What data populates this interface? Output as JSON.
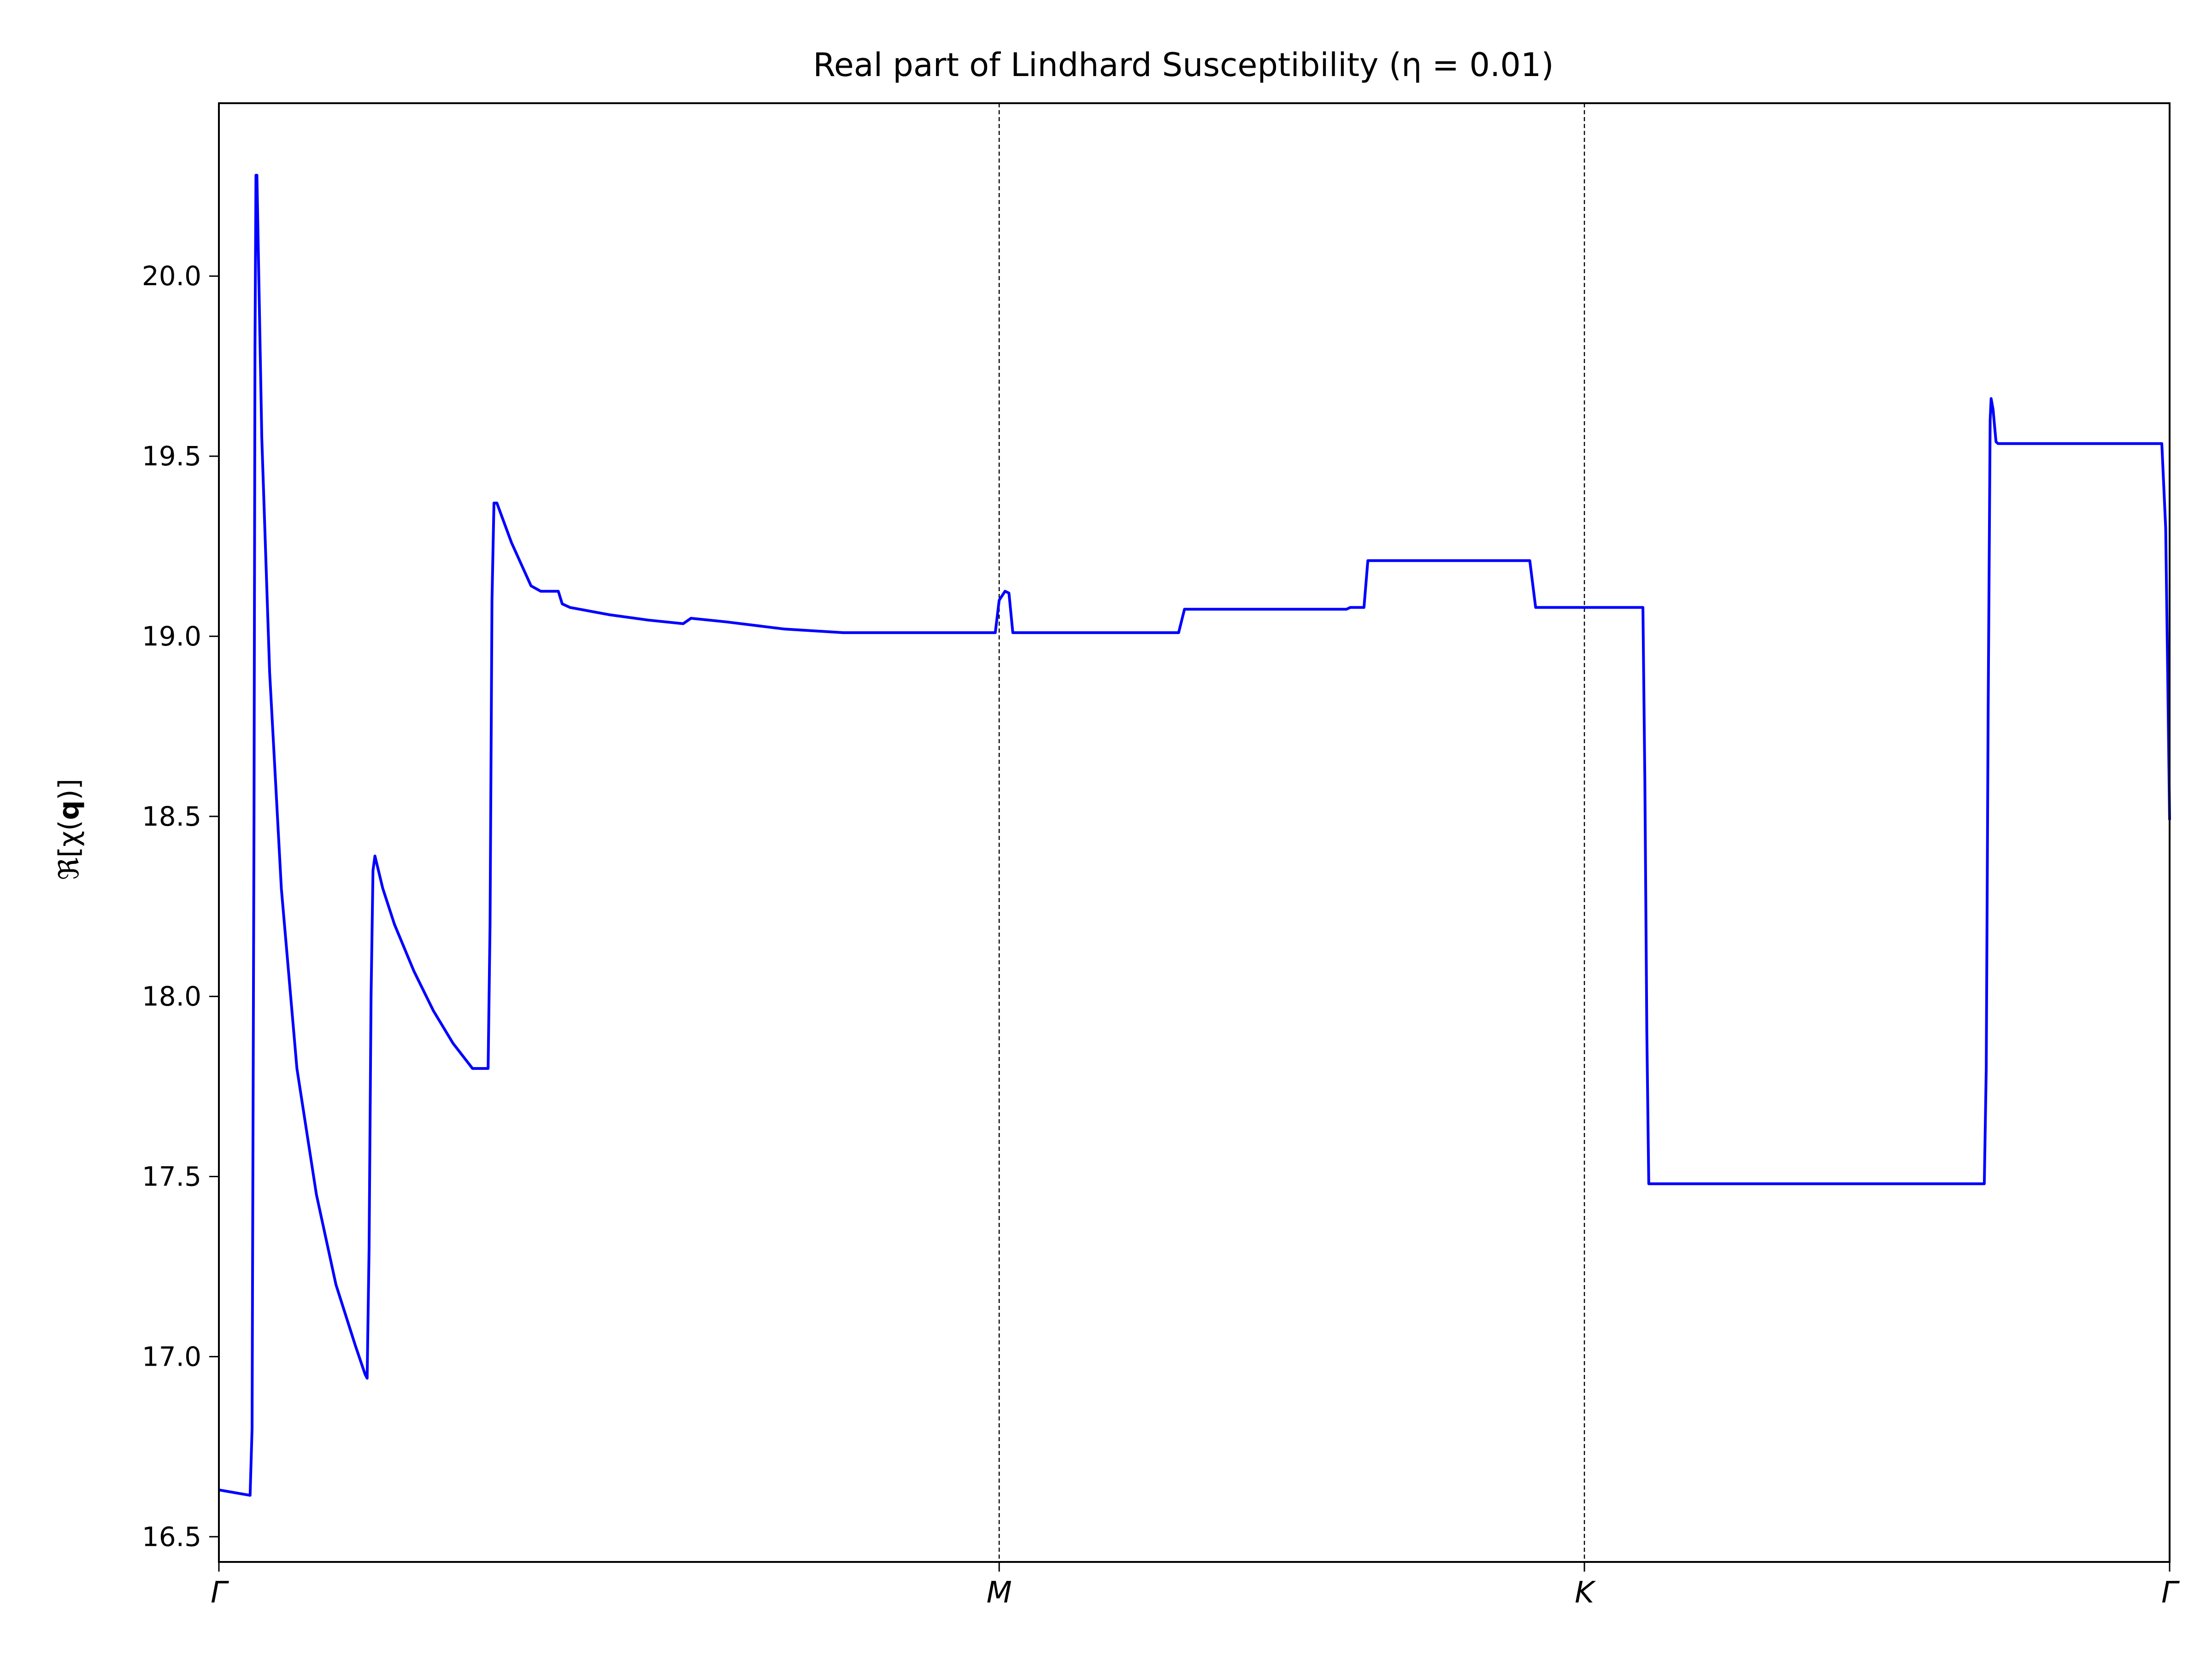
{
  "chart_data": {
    "type": "line",
    "title": "Real part of Lindhard Susceptibility (η = 0.01)",
    "xlabel": "",
    "ylabel": "ℜ[χ(q)]",
    "ylabel_parts": {
      "prefix": "ℜ[χ(",
      "bold": "q",
      "suffix": ")]"
    },
    "xlim": [
      0,
      1
    ],
    "ylim": [
      16.43,
      20.48
    ],
    "yticks": [
      16.5,
      17.0,
      17.5,
      18.0,
      18.5,
      19.0,
      19.5,
      20.0
    ],
    "ytick_labels": [
      "16.5",
      "17.0",
      "17.5",
      "18.0",
      "18.5",
      "19.0",
      "19.5",
      "20.0"
    ],
    "xticks": [
      {
        "x": 0.0,
        "label": "Γ"
      },
      {
        "x": 0.4,
        "label": "M"
      },
      {
        "x": 0.7,
        "label": "K"
      },
      {
        "x": 1.0,
        "label": "Γ"
      }
    ],
    "vlines": [
      0.4,
      0.7
    ],
    "grid": false,
    "legend": "none",
    "series": [
      {
        "color": "#0000ff",
        "points": [
          [
            0.0,
            16.63
          ],
          [
            0.016,
            16.615
          ],
          [
            0.017,
            16.8
          ],
          [
            0.018,
            18.5
          ],
          [
            0.0185,
            19.8
          ],
          [
            0.019,
            20.28
          ],
          [
            0.0195,
            20.28
          ],
          [
            0.022,
            19.55
          ],
          [
            0.026,
            18.9
          ],
          [
            0.032,
            18.3
          ],
          [
            0.04,
            17.8
          ],
          [
            0.05,
            17.45
          ],
          [
            0.06,
            17.2
          ],
          [
            0.07,
            17.03
          ],
          [
            0.075,
            16.95
          ],
          [
            0.076,
            16.94
          ],
          [
            0.077,
            17.3
          ],
          [
            0.078,
            18.0
          ],
          [
            0.079,
            18.35
          ],
          [
            0.08,
            18.39
          ],
          [
            0.084,
            18.3
          ],
          [
            0.09,
            18.2
          ],
          [
            0.1,
            18.07
          ],
          [
            0.11,
            17.96
          ],
          [
            0.12,
            17.87
          ],
          [
            0.13,
            17.8
          ],
          [
            0.138,
            17.8
          ],
          [
            0.139,
            18.2
          ],
          [
            0.14,
            19.1
          ],
          [
            0.141,
            19.37
          ],
          [
            0.1425,
            19.37
          ],
          [
            0.15,
            19.26
          ],
          [
            0.16,
            19.14
          ],
          [
            0.165,
            19.125
          ],
          [
            0.174,
            19.125
          ],
          [
            0.176,
            19.09
          ],
          [
            0.18,
            19.08
          ],
          [
            0.2,
            19.06
          ],
          [
            0.22,
            19.045
          ],
          [
            0.238,
            19.035
          ],
          [
            0.242,
            19.05
          ],
          [
            0.26,
            19.04
          ],
          [
            0.29,
            19.02
          ],
          [
            0.32,
            19.01
          ],
          [
            0.398,
            19.01
          ],
          [
            0.4,
            19.1
          ],
          [
            0.403,
            19.125
          ],
          [
            0.405,
            19.12
          ],
          [
            0.407,
            19.01
          ],
          [
            0.492,
            19.01
          ],
          [
            0.495,
            19.075
          ],
          [
            0.578,
            19.075
          ],
          [
            0.58,
            19.08
          ],
          [
            0.587,
            19.08
          ],
          [
            0.589,
            19.21
          ],
          [
            0.672,
            19.21
          ],
          [
            0.675,
            19.08
          ],
          [
            0.73,
            19.08
          ],
          [
            0.731,
            18.6
          ],
          [
            0.732,
            17.9
          ],
          [
            0.733,
            17.48
          ],
          [
            0.905,
            17.48
          ],
          [
            0.906,
            17.8
          ],
          [
            0.907,
            18.8
          ],
          [
            0.908,
            19.6
          ],
          [
            0.9085,
            19.66
          ],
          [
            0.9095,
            19.63
          ],
          [
            0.911,
            19.54
          ],
          [
            0.912,
            19.535
          ],
          [
            0.996,
            19.535
          ],
          [
            0.998,
            19.3
          ],
          [
            0.999,
            18.9
          ],
          [
            1.0,
            18.49
          ]
        ]
      }
    ]
  }
}
